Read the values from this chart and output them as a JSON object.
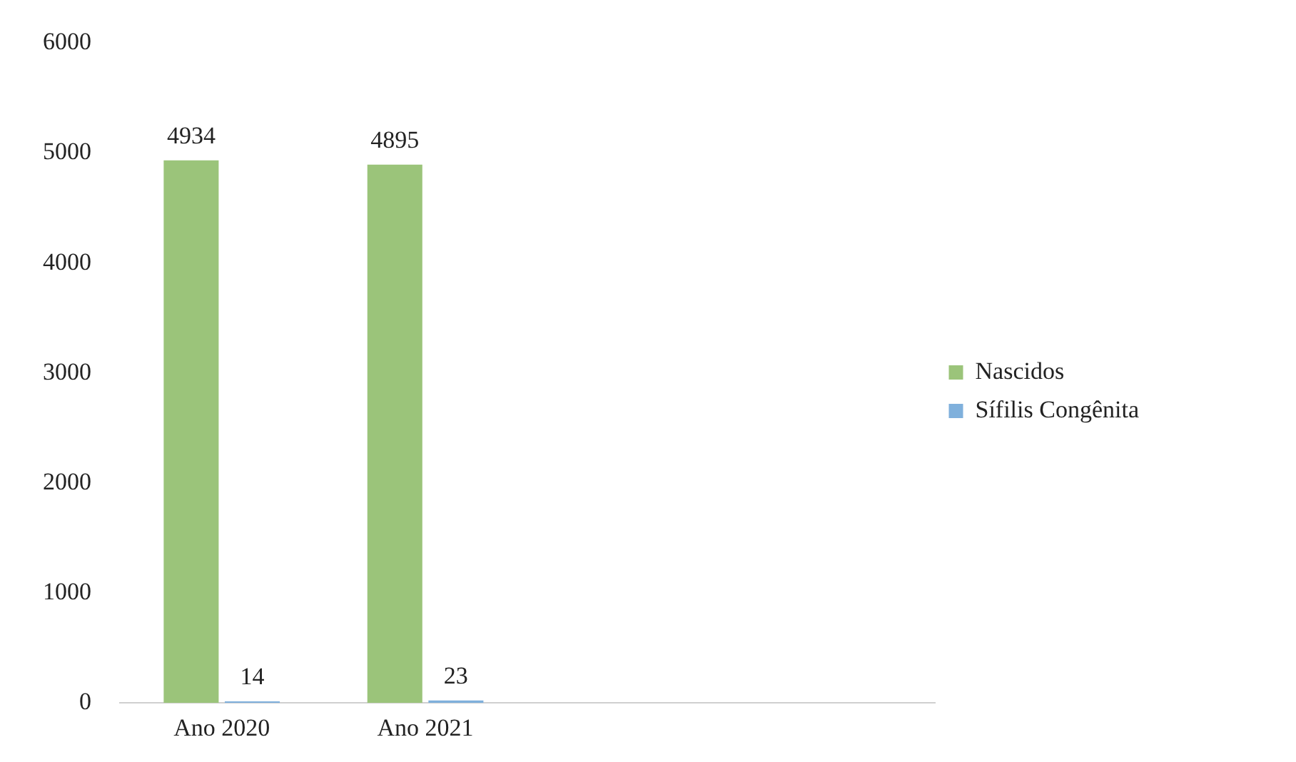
{
  "chart_data": {
    "type": "bar",
    "categories": [
      "Ano 2020",
      "Ano 2021",
      null,
      null
    ],
    "series": [
      {
        "name": "Nascidos",
        "color": "#9bc47a",
        "values": [
          4934,
          4895,
          null,
          null
        ]
      },
      {
        "name": "Sífilis Congênita",
        "color": "#7fb0dc",
        "values": [
          14,
          23,
          null,
          null
        ]
      }
    ],
    "ylim": [
      0,
      6000
    ],
    "yticks": [
      0,
      1000,
      2000,
      3000,
      4000,
      5000,
      6000
    ],
    "grid": false,
    "legend": "right",
    "data_labels": true
  }
}
